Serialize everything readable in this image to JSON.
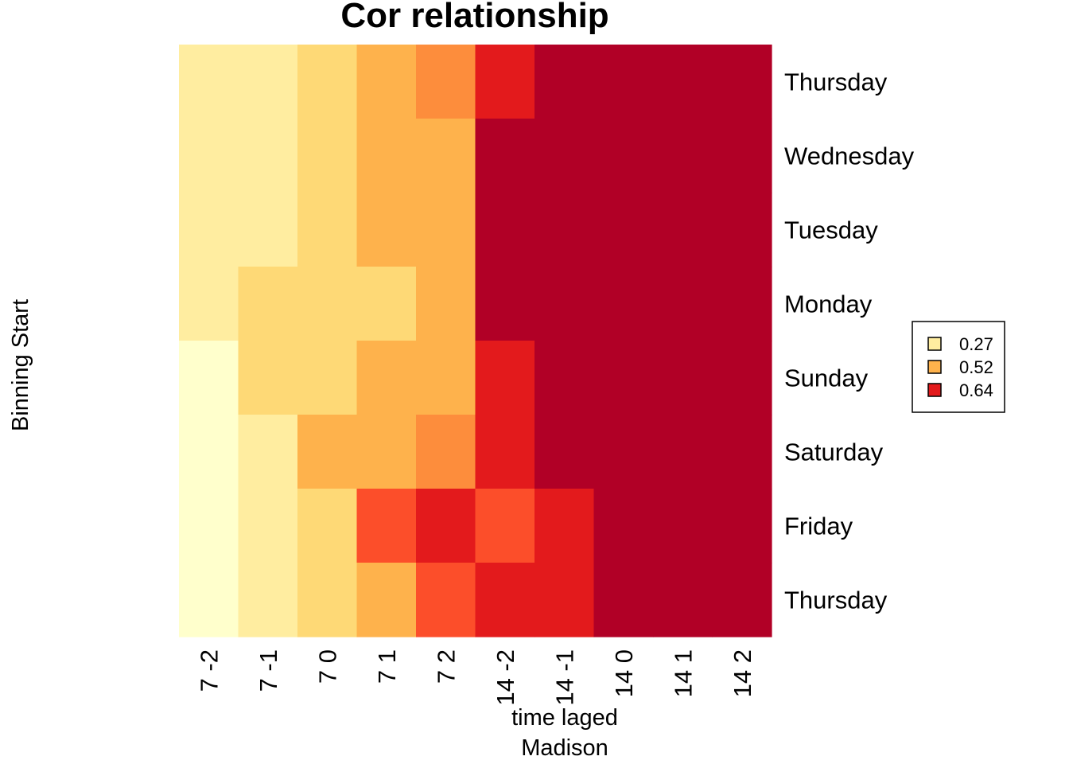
{
  "chart_data": {
    "type": "heatmap",
    "title": "Cor relationship",
    "xlabel": "time laged",
    "xlabel2": "Madison",
    "ylabel": "Binning Start",
    "x": [
      "7 -2",
      "7 -1",
      "7 0",
      "7 1",
      "7 2",
      "14 -2",
      "14 -1",
      "14 0",
      "14 1",
      "14 2"
    ],
    "y": [
      "Thursday",
      "Wednesday",
      "Tuesday",
      "Monday",
      "Sunday",
      "Saturday",
      "Friday",
      "Thursday"
    ],
    "colors": {
      "c1": "#FFFFCC",
      "c2": "#FFEDA0",
      "c3": "#FED976",
      "c4": "#FEB24C",
      "c5": "#FD8D3C",
      "c6": "#FC4E2A",
      "c7": "#E31A1C",
      "c8": "#B10026"
    },
    "cells": [
      [
        "c2",
        "c2",
        "c3",
        "c4",
        "c5",
        "c7",
        "c8",
        "c8",
        "c8",
        "c8"
      ],
      [
        "c2",
        "c2",
        "c3",
        "c4",
        "c4",
        "c8",
        "c8",
        "c8",
        "c8",
        "c8"
      ],
      [
        "c2",
        "c2",
        "c3",
        "c4",
        "c4",
        "c8",
        "c8",
        "c8",
        "c8",
        "c8"
      ],
      [
        "c2",
        "c3",
        "c3",
        "c3",
        "c4",
        "c8",
        "c8",
        "c8",
        "c8",
        "c8"
      ],
      [
        "c1",
        "c3",
        "c3",
        "c4",
        "c4",
        "c7",
        "c8",
        "c8",
        "c8",
        "c8"
      ],
      [
        "c1",
        "c2",
        "c4",
        "c4",
        "c5",
        "c7",
        "c8",
        "c8",
        "c8",
        "c8"
      ],
      [
        "c1",
        "c2",
        "c3",
        "c6",
        "c7",
        "c6",
        "c7",
        "c8",
        "c8",
        "c8"
      ],
      [
        "c1",
        "c2",
        "c3",
        "c4",
        "c6",
        "c7",
        "c7",
        "c8",
        "c8",
        "c8"
      ]
    ],
    "legend": {
      "position": "right",
      "entries": [
        {
          "label": "0.27",
          "color": "#FFEDA0"
        },
        {
          "label": "0.52",
          "color": "#FEB24C"
        },
        {
          "label": "0.64",
          "color": "#E31A1C"
        }
      ]
    }
  }
}
